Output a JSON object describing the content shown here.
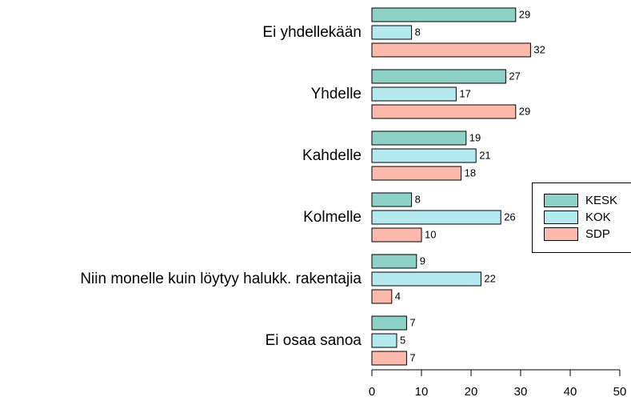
{
  "chart_data": {
    "type": "barh",
    "categories": [
      "Ei yhdellekään",
      "Yhdelle",
      "Kahdelle",
      "Kolmelle",
      "Niin monelle kuin löytyy halukk. rakentajia",
      "Ei osaa sanoa"
    ],
    "series": [
      {
        "name": "KESK",
        "color": "#8ed1c6",
        "values": [
          29,
          27,
          19,
          8,
          9,
          7
        ]
      },
      {
        "name": "KOK",
        "color": "#b5e9f0",
        "values": [
          8,
          17,
          21,
          26,
          22,
          5
        ]
      },
      {
        "name": "SDP",
        "color": "#fdb9ab",
        "values": [
          32,
          29,
          18,
          10,
          4,
          7
        ]
      }
    ],
    "xlim": [
      0,
      50
    ],
    "xticks": [
      0,
      10,
      20,
      30,
      40,
      50
    ],
    "legend": "right"
  }
}
